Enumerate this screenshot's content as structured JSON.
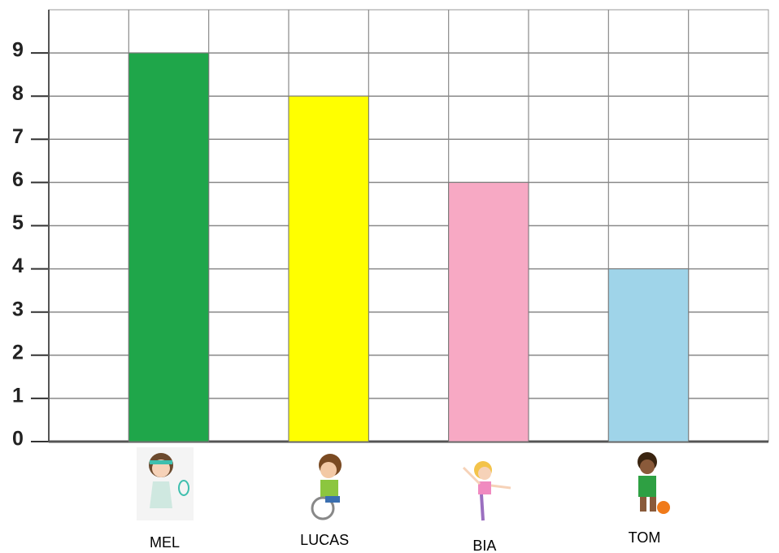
{
  "chart_data": {
    "type": "bar",
    "categories": [
      "MEL",
      "LUCAS",
      "BIA",
      "TOM"
    ],
    "values": [
      9,
      8,
      6,
      4
    ],
    "colors": [
      "#1fa64a",
      "#ffff00",
      "#f7a9c4",
      "#9fd4e9"
    ],
    "ylim": [
      0,
      10
    ],
    "yticks": [
      0,
      1,
      2,
      3,
      4,
      5,
      6,
      7,
      8,
      9
    ],
    "grid": true
  }
}
